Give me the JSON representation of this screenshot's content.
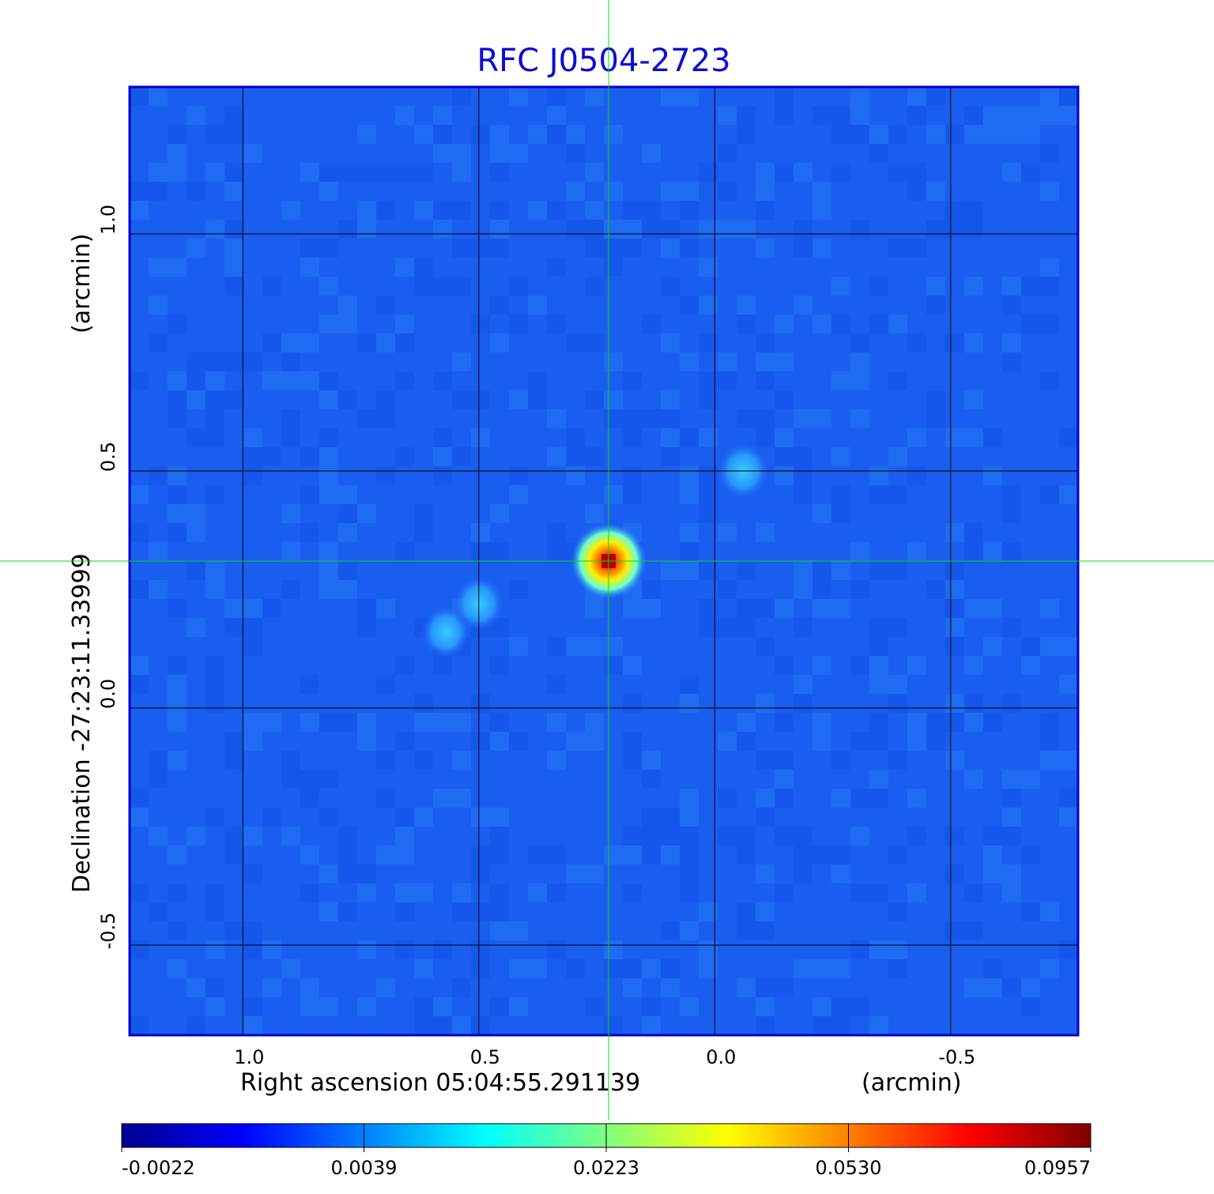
{
  "chart_data": {
    "type": "heatmap",
    "title": "RFC J0504-2723",
    "x_axis": {
      "label": "Right ascension  05:04:55.291139",
      "unit_label": "(arcmin)",
      "ticks": [
        1.0,
        0.5,
        0.0,
        -0.5
      ],
      "tick_labels": [
        "1.0",
        "0.5",
        "0.0",
        "-0.5"
      ],
      "range": [
        1.24,
        -0.77
      ]
    },
    "y_axis": {
      "label": "Declination  -27:23:11.33999",
      "unit_label": "(arcmin)",
      "ticks": [
        1.0,
        0.5,
        0.0,
        -0.5
      ],
      "tick_labels": [
        "1.0",
        "0.5",
        "0.0",
        "-0.5"
      ],
      "range": [
        -0.69,
        1.31
      ]
    },
    "grid": true,
    "crosshair": {
      "x": 0.225,
      "y": 0.31,
      "color": "#00dd00"
    },
    "colormap": "jet",
    "colorbar": {
      "tick_labels": [
        "-0.0022",
        "0.0039",
        "0.0223",
        "0.0530",
        "0.0957"
      ],
      "min": -0.0022,
      "max": 0.0957
    },
    "features": [
      {
        "name": "peak",
        "x": 0.225,
        "y": 0.31,
        "value": 0.0957
      },
      {
        "name": "blob",
        "x": -0.06,
        "y": 0.5,
        "value": 0.008
      },
      {
        "name": "blob",
        "x": 0.5,
        "y": 0.22,
        "value": 0.007
      },
      {
        "name": "blob",
        "x": 0.57,
        "y": 0.16,
        "value": 0.005
      }
    ]
  }
}
